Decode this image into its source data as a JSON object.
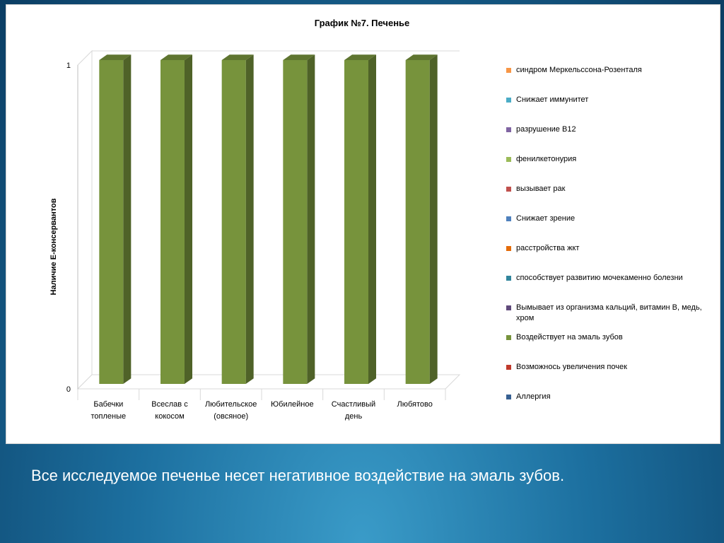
{
  "chart_data": {
    "type": "bar",
    "title": "График №7. Печенье",
    "ylabel": "Наличие Е-консервантов",
    "xlabel": "",
    "ylim": [
      0,
      1
    ],
    "yticks": [
      "0",
      "1"
    ],
    "categories": [
      [
        "Бабечки",
        "топленые"
      ],
      [
        "Всеслав с",
        "кокосом"
      ],
      [
        "Любительское",
        "(овсяное)"
      ],
      [
        "Юбилейное"
      ],
      [
        "Счастливый",
        "день"
      ],
      [
        "Любятово"
      ]
    ],
    "series": [
      {
        "name": "синдром Меркельссона-Розенталя",
        "color": "#f79646",
        "values": [
          0,
          0,
          0,
          0,
          0,
          0
        ]
      },
      {
        "name": "Снижает иммунитет",
        "color": "#4bacc6",
        "values": [
          0,
          0,
          0,
          0,
          0,
          0
        ]
      },
      {
        "name": "разрушение В12",
        "color": "#8064a2",
        "values": [
          0,
          0,
          0,
          0,
          0,
          0
        ]
      },
      {
        "name": "фенилкетонурия",
        "color": "#9bbb59",
        "values": [
          0,
          0,
          0,
          0,
          0,
          0
        ]
      },
      {
        "name": "вызывает рак",
        "color": "#c0504d",
        "values": [
          0,
          0,
          0,
          0,
          0,
          0
        ]
      },
      {
        "name": "Снижает зрение",
        "color": "#4f81bd",
        "values": [
          0,
          0,
          0,
          0,
          0,
          0
        ]
      },
      {
        "name": "расстройства жкт",
        "color": "#e46c0a",
        "values": [
          0,
          0,
          0,
          0,
          0,
          0
        ]
      },
      {
        "name": "способствует развитию мочекаменно болезни",
        "color": "#31859c",
        "values": [
          0,
          0,
          0,
          0,
          0,
          0
        ]
      },
      {
        "name": "Вымывает из организма кальций, витамин В, медь, хром",
        "color": "#604a7b",
        "values": [
          0,
          0,
          0,
          0,
          0,
          0
        ]
      },
      {
        "name": "Воздействует на эмаль зубов",
        "color": "#77933c",
        "values": [
          1,
          1,
          1,
          1,
          1,
          1
        ]
      },
      {
        "name": "Возможнось увеличения почек",
        "color": "#c0392b",
        "values": [
          0,
          0,
          0,
          0,
          0,
          0
        ]
      },
      {
        "name": "Аллергия",
        "color": "#376092",
        "values": [
          0,
          0,
          0,
          0,
          0,
          0
        ]
      }
    ],
    "legend_position": "right",
    "grid": true
  },
  "caption": "Все исследуемое печенье несет негативное воздействие на эмаль зубов."
}
